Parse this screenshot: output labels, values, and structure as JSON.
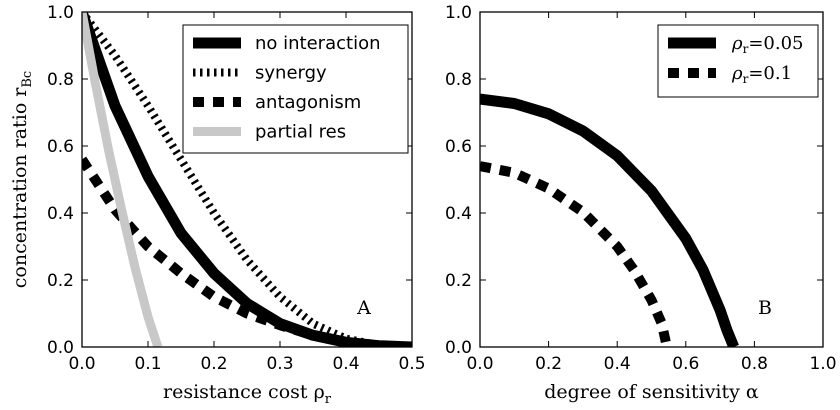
{
  "chart_data": [
    {
      "type": "line",
      "panel_label": "A",
      "xlabel": "resistance cost ρ",
      "xlabel_sub": "r",
      "ylabel": "concentration ratio r",
      "ylabel_sub": "Bc",
      "xlim": [
        0,
        0.5
      ],
      "ylim": [
        0,
        1.0
      ],
      "xticks": [
        "0.0",
        "0.1",
        "0.2",
        "0.3",
        "0.4",
        "0.5"
      ],
      "yticks": [
        "0.0",
        "0.2",
        "0.4",
        "0.6",
        "0.8",
        "1.0"
      ],
      "legend_position": "top-right",
      "series": [
        {
          "name": "no interaction",
          "style": "solid",
          "color": "#000000",
          "x": [
            0,
            0.05,
            0.1,
            0.15,
            0.2,
            0.25,
            0.3,
            0.35,
            0.4,
            0.45,
            0.5
          ],
          "y": [
            1.0,
            0.72,
            0.51,
            0.34,
            0.22,
            0.13,
            0.07,
            0.035,
            0.014,
            0.004,
            0.0
          ]
        },
        {
          "name": "synergy",
          "style": "dotted",
          "color": "#000000",
          "x": [
            0,
            0.05,
            0.1,
            0.15,
            0.2,
            0.25,
            0.3,
            0.35,
            0.4,
            0.45,
            0.5
          ],
          "y": [
            1.0,
            0.87,
            0.72,
            0.56,
            0.4,
            0.26,
            0.15,
            0.07,
            0.025,
            0.005,
            0.0
          ]
        },
        {
          "name": "antagonism",
          "style": "dashed",
          "color": "#000000",
          "x": [
            0,
            0.05,
            0.1,
            0.15,
            0.2,
            0.25,
            0.3,
            0.35,
            0.4,
            0.45,
            0.5
          ],
          "y": [
            0.56,
            0.41,
            0.3,
            0.22,
            0.15,
            0.1,
            0.065,
            0.035,
            0.015,
            0.004,
            0.0
          ]
        },
        {
          "name": "partial res",
          "style": "solid",
          "color": "#c8c8c8",
          "x": [
            0,
            0.02,
            0.04,
            0.06,
            0.08,
            0.1,
            0.115
          ],
          "y": [
            1.0,
            0.79,
            0.59,
            0.41,
            0.24,
            0.09,
            0.0
          ]
        }
      ]
    },
    {
      "type": "line",
      "panel_label": "B",
      "xlabel": "degree of sensitivity α",
      "ylabel": "",
      "xlim": [
        0,
        1.0
      ],
      "ylim": [
        0,
        1.0
      ],
      "xticks": [
        "0.0",
        "0.2",
        "0.4",
        "0.6",
        "0.8",
        "1.0"
      ],
      "yticks": [
        "0.0",
        "0.2",
        "0.4",
        "0.6",
        "0.8",
        "1.0"
      ],
      "legend_position": "top-right",
      "series": [
        {
          "name": "ρ",
          "name_sub": "r",
          "name_value": "=0.05",
          "style": "solid",
          "color": "#000000",
          "x": [
            0,
            0.1,
            0.2,
            0.3,
            0.4,
            0.5,
            0.6,
            0.65,
            0.7,
            0.72,
            0.74
          ],
          "y": [
            0.74,
            0.727,
            0.696,
            0.645,
            0.571,
            0.466,
            0.324,
            0.23,
            0.11,
            0.05,
            0.0
          ]
        },
        {
          "name": "ρ",
          "name_sub": "r",
          "name_value": "=0.1",
          "style": "dashed",
          "color": "#000000",
          "x": [
            0,
            0.1,
            0.2,
            0.3,
            0.4,
            0.45,
            0.5,
            0.53,
            0.545
          ],
          "y": [
            0.54,
            0.52,
            0.473,
            0.403,
            0.3,
            0.228,
            0.14,
            0.07,
            0.0
          ]
        }
      ]
    }
  ]
}
